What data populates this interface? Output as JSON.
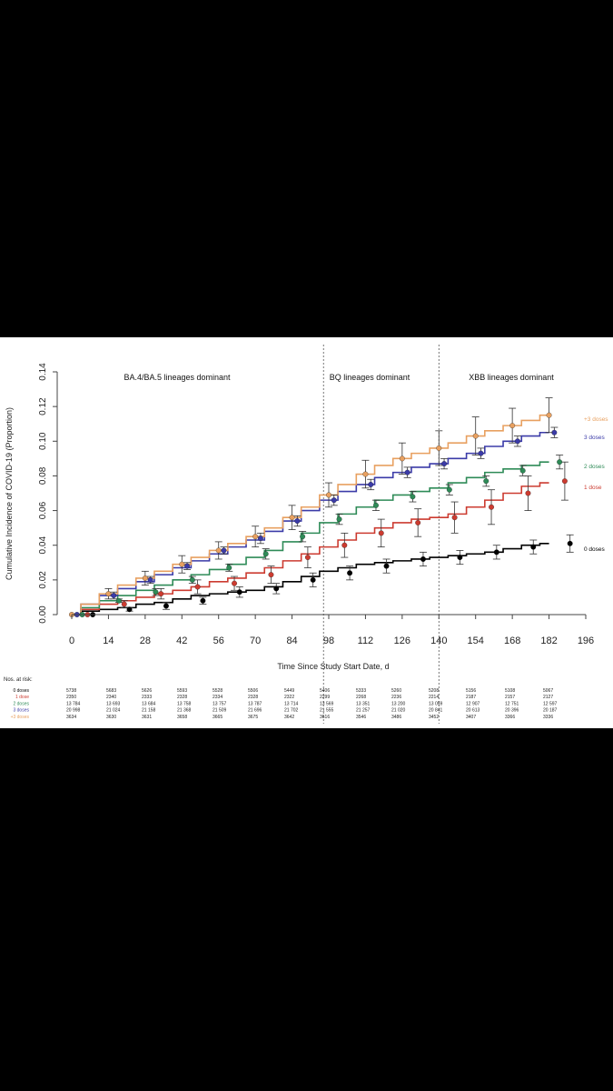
{
  "chart_data": {
    "type": "line",
    "xlabel": "Time Since Study Start Date, d",
    "ylabel": "Cumulative Incidence of COVID-19 (Proportion)",
    "xlim": [
      0,
      196
    ],
    "ylim": [
      0,
      0.14
    ],
    "xticks": [
      "0",
      "14",
      "28",
      "42",
      "56",
      "70",
      "84",
      "98",
      "112",
      "126",
      "140",
      "154",
      "168",
      "182",
      "196"
    ],
    "yticks": [
      "0.00",
      "0.02",
      "0.04",
      "0.06",
      "0.08",
      "0.10",
      "0.12",
      "0.14"
    ],
    "periods": [
      {
        "label": "BA.4/BA.5 lineages dominant"
      },
      {
        "label": "BQ lineages dominant"
      },
      {
        "label": "XBB lineages dominant"
      }
    ],
    "period_dividers_x": [
      96,
      140
    ],
    "x": [
      0,
      7,
      14,
      21,
      28,
      35,
      42,
      49,
      56,
      63,
      70,
      77,
      84,
      91,
      98,
      105,
      112,
      119,
      126,
      133,
      140,
      147,
      154,
      161,
      168,
      175,
      182
    ],
    "series": [
      {
        "name": "0 doses",
        "color": "#000000",
        "values": [
          0,
          0.002,
          0.003,
          0.004,
          0.006,
          0.007,
          0.009,
          0.011,
          0.012,
          0.013,
          0.014,
          0.016,
          0.019,
          0.022,
          0.025,
          0.027,
          0.029,
          0.03,
          0.031,
          0.032,
          0.033,
          0.034,
          0.035,
          0.036,
          0.038,
          0.04,
          0.041
        ],
        "points": [
          [
            8,
            0.0
          ],
          [
            22,
            0.003
          ],
          [
            36,
            0.005
          ],
          [
            50,
            0.008
          ],
          [
            64,
            0.013
          ],
          [
            78,
            0.015
          ],
          [
            92,
            0.02
          ],
          [
            106,
            0.024
          ],
          [
            120,
            0.028
          ],
          [
            134,
            0.032
          ],
          [
            148,
            0.033
          ],
          [
            162,
            0.036
          ],
          [
            176,
            0.039
          ],
          [
            190,
            0.041
          ]
        ],
        "err": [
          0.0,
          0.001,
          0.002,
          0.002,
          0.003,
          0.003,
          0.004,
          0.004,
          0.004,
          0.004,
          0.004,
          0.004,
          0.004,
          0.005
        ]
      },
      {
        "name": "1 dose",
        "color": "#cc3b30",
        "values": [
          0,
          0.003,
          0.006,
          0.008,
          0.01,
          0.012,
          0.014,
          0.016,
          0.019,
          0.021,
          0.024,
          0.027,
          0.031,
          0.035,
          0.039,
          0.043,
          0.047,
          0.05,
          0.053,
          0.055,
          0.056,
          0.058,
          0.062,
          0.066,
          0.07,
          0.074,
          0.076
        ],
        "points": [
          [
            6,
            0.0
          ],
          [
            20,
            0.006
          ],
          [
            34,
            0.012
          ],
          [
            48,
            0.016
          ],
          [
            62,
            0.018
          ],
          [
            76,
            0.023
          ],
          [
            90,
            0.033
          ],
          [
            104,
            0.04
          ],
          [
            118,
            0.047
          ],
          [
            132,
            0.053
          ],
          [
            146,
            0.056
          ],
          [
            160,
            0.062
          ],
          [
            174,
            0.07
          ],
          [
            188,
            0.077
          ]
        ],
        "err": [
          0.0,
          0.002,
          0.003,
          0.004,
          0.004,
          0.005,
          0.006,
          0.007,
          0.008,
          0.008,
          0.009,
          0.01,
          0.01,
          0.011
        ]
      },
      {
        "name": "2 doses",
        "color": "#2e8b57",
        "values": [
          0,
          0.004,
          0.008,
          0.011,
          0.014,
          0.017,
          0.02,
          0.023,
          0.026,
          0.029,
          0.033,
          0.037,
          0.042,
          0.047,
          0.053,
          0.058,
          0.062,
          0.066,
          0.069,
          0.071,
          0.073,
          0.076,
          0.079,
          0.082,
          0.084,
          0.086,
          0.088
        ],
        "points": [
          [
            4,
            0.0
          ],
          [
            18,
            0.008
          ],
          [
            32,
            0.013
          ],
          [
            46,
            0.02
          ],
          [
            60,
            0.027
          ],
          [
            74,
            0.035
          ],
          [
            88,
            0.045
          ],
          [
            102,
            0.055
          ],
          [
            116,
            0.063
          ],
          [
            130,
            0.068
          ],
          [
            144,
            0.072
          ],
          [
            158,
            0.077
          ],
          [
            172,
            0.083
          ],
          [
            186,
            0.088
          ]
        ],
        "err": [
          0.0,
          0.001,
          0.002,
          0.002,
          0.002,
          0.003,
          0.003,
          0.003,
          0.003,
          0.003,
          0.003,
          0.003,
          0.003,
          0.004
        ]
      },
      {
        "name": "3 doses",
        "color": "#3b3ba8",
        "values": [
          0,
          0.006,
          0.011,
          0.015,
          0.019,
          0.023,
          0.027,
          0.031,
          0.035,
          0.039,
          0.043,
          0.048,
          0.054,
          0.06,
          0.066,
          0.071,
          0.075,
          0.079,
          0.082,
          0.085,
          0.087,
          0.09,
          0.093,
          0.097,
          0.1,
          0.103,
          0.105
        ],
        "points": [
          [
            2,
            0.0
          ],
          [
            16,
            0.011
          ],
          [
            30,
            0.02
          ],
          [
            44,
            0.028
          ],
          [
            58,
            0.037
          ],
          [
            72,
            0.044
          ],
          [
            86,
            0.054
          ],
          [
            100,
            0.066
          ],
          [
            114,
            0.075
          ],
          [
            128,
            0.082
          ],
          [
            142,
            0.087
          ],
          [
            156,
            0.093
          ],
          [
            170,
            0.1
          ],
          [
            184,
            0.105
          ]
        ],
        "err": [
          0.0,
          0.002,
          0.002,
          0.002,
          0.002,
          0.003,
          0.003,
          0.003,
          0.003,
          0.003,
          0.003,
          0.003,
          0.003,
          0.003
        ]
      },
      {
        "name": "+3 doses",
        "color": "#e8a060",
        "values": [
          0,
          0.006,
          0.012,
          0.017,
          0.021,
          0.025,
          0.029,
          0.033,
          0.037,
          0.041,
          0.045,
          0.05,
          0.056,
          0.062,
          0.069,
          0.075,
          0.081,
          0.086,
          0.09,
          0.093,
          0.096,
          0.099,
          0.103,
          0.106,
          0.109,
          0.112,
          0.115
        ],
        "points": [
          [
            0,
            0.0
          ],
          [
            14,
            0.012
          ],
          [
            28,
            0.021
          ],
          [
            42,
            0.029
          ],
          [
            56,
            0.037
          ],
          [
            70,
            0.045
          ],
          [
            84,
            0.056
          ],
          [
            98,
            0.069
          ],
          [
            112,
            0.081
          ],
          [
            126,
            0.09
          ],
          [
            140,
            0.096
          ],
          [
            154,
            0.103
          ],
          [
            168,
            0.109
          ],
          [
            182,
            0.115
          ]
        ],
        "err": [
          0.0,
          0.003,
          0.004,
          0.005,
          0.005,
          0.006,
          0.007,
          0.007,
          0.008,
          0.009,
          0.01,
          0.011,
          0.01,
          0.01
        ]
      }
    ]
  },
  "risk_table": {
    "header": "Nos. at risk:",
    "rows": [
      {
        "label": "0 doses",
        "color": "#000000",
        "values": [
          "5738",
          "5683",
          "5626",
          "5593",
          "5528",
          "5506",
          "5449",
          "5406",
          "5333",
          "5260",
          "5208",
          "5156",
          "5108",
          "5067"
        ]
      },
      {
        "label": "1 dose",
        "color": "#cc3b30",
        "values": [
          "2350",
          "2340",
          "2333",
          "2328",
          "2334",
          "2328",
          "2322",
          "2299",
          "2268",
          "2236",
          "2214",
          "2187",
          "2157",
          "2127"
        ]
      },
      {
        "label": "2 doses",
        "color": "#2e8b57",
        "values": [
          "13 784",
          "13 693",
          "13 684",
          "13 758",
          "13 757",
          "13 787",
          "13 714",
          "13 569",
          "13 351",
          "13 200",
          "13 059",
          "12 907",
          "12 751",
          "12 597"
        ]
      },
      {
        "label": "3 doses",
        "color": "#3b3ba8",
        "values": [
          "20 998",
          "21 024",
          "21 158",
          "21 368",
          "21 509",
          "21 696",
          "21 702",
          "21 555",
          "21 257",
          "21 020",
          "20 841",
          "20 613",
          "20 396",
          "20 187"
        ]
      },
      {
        "label": "+3 doses",
        "color": "#e8a060",
        "values": [
          "3634",
          "3630",
          "3631",
          "3658",
          "3665",
          "3675",
          "3642",
          "3616",
          "3546",
          "3486",
          "3452",
          "3407",
          "3366",
          "3336"
        ]
      }
    ]
  }
}
